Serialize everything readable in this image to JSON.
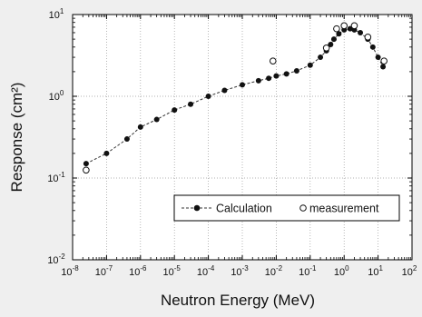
{
  "chart_data": {
    "type": "scatter",
    "title": "",
    "xlabel": "Neutron Energy (MeV)",
    "ylabel": "Response (cm²)",
    "x_scale": "log",
    "y_scale": "log",
    "xlim": [
      1e-08,
      100
    ],
    "ylim": [
      0.01,
      10
    ],
    "grid": true,
    "legend_position": "bottom-right",
    "x_ticks": [
      {
        "exp": -8,
        "label": "10",
        "sup": "-8"
      },
      {
        "exp": -7,
        "label": "10",
        "sup": "-7"
      },
      {
        "exp": -6,
        "label": "10",
        "sup": "-6"
      },
      {
        "exp": -5,
        "label": "10",
        "sup": "-5"
      },
      {
        "exp": -4,
        "label": "10",
        "sup": "-4"
      },
      {
        "exp": -3,
        "label": "10",
        "sup": "-3"
      },
      {
        "exp": -2,
        "label": "10",
        "sup": "-2"
      },
      {
        "exp": -1,
        "label": "10",
        "sup": "-1"
      },
      {
        "exp": 0,
        "label": "10",
        "sup": "0"
      },
      {
        "exp": 1,
        "label": "10",
        "sup": "1"
      },
      {
        "exp": 2,
        "label": "10",
        "sup": "2"
      }
    ],
    "y_ticks": [
      {
        "exp": -2,
        "label": "10",
        "sup": "-2"
      },
      {
        "exp": -1,
        "label": "10",
        "sup": "-1"
      },
      {
        "exp": 0,
        "label": "10",
        "sup": "0"
      },
      {
        "exp": 1,
        "label": "10",
        "sup": "1"
      }
    ],
    "series": [
      {
        "name": "Calculation",
        "marker": "filled-circle",
        "line": "dashed",
        "color": "#111111",
        "points": [
          [
            2.5e-08,
            0.15
          ],
          [
            1e-07,
            0.2
          ],
          [
            4e-07,
            0.3
          ],
          [
            1e-06,
            0.42
          ],
          [
            3e-06,
            0.52
          ],
          [
            1e-05,
            0.68
          ],
          [
            3e-05,
            0.8
          ],
          [
            0.0001,
            1.0
          ],
          [
            0.0003,
            1.18
          ],
          [
            0.001,
            1.38
          ],
          [
            0.003,
            1.55
          ],
          [
            0.006,
            1.66
          ],
          [
            0.01,
            1.77
          ],
          [
            0.02,
            1.88
          ],
          [
            0.04,
            2.05
          ],
          [
            0.1,
            2.4
          ],
          [
            0.2,
            3.0
          ],
          [
            0.3,
            3.6
          ],
          [
            0.4,
            4.3
          ],
          [
            0.5,
            5.0
          ],
          [
            0.7,
            5.8
          ],
          [
            1.0,
            6.5
          ],
          [
            1.5,
            6.7
          ],
          [
            2.0,
            6.5
          ],
          [
            3.0,
            6.0
          ],
          [
            5.0,
            5.0
          ],
          [
            7.0,
            4.0
          ],
          [
            10.0,
            3.0
          ],
          [
            14.0,
            2.3
          ]
        ]
      },
      {
        "name": "measurement",
        "marker": "open-circle",
        "line": "none",
        "color": "#111111",
        "points": [
          [
            2.5e-08,
            0.125
          ],
          [
            0.008,
            2.7
          ],
          [
            0.3,
            3.9
          ],
          [
            0.6,
            6.7
          ],
          [
            1.0,
            7.3
          ],
          [
            2.0,
            7.3
          ],
          [
            5.0,
            5.3
          ],
          [
            15.0,
            2.7
          ]
        ]
      }
    ]
  }
}
